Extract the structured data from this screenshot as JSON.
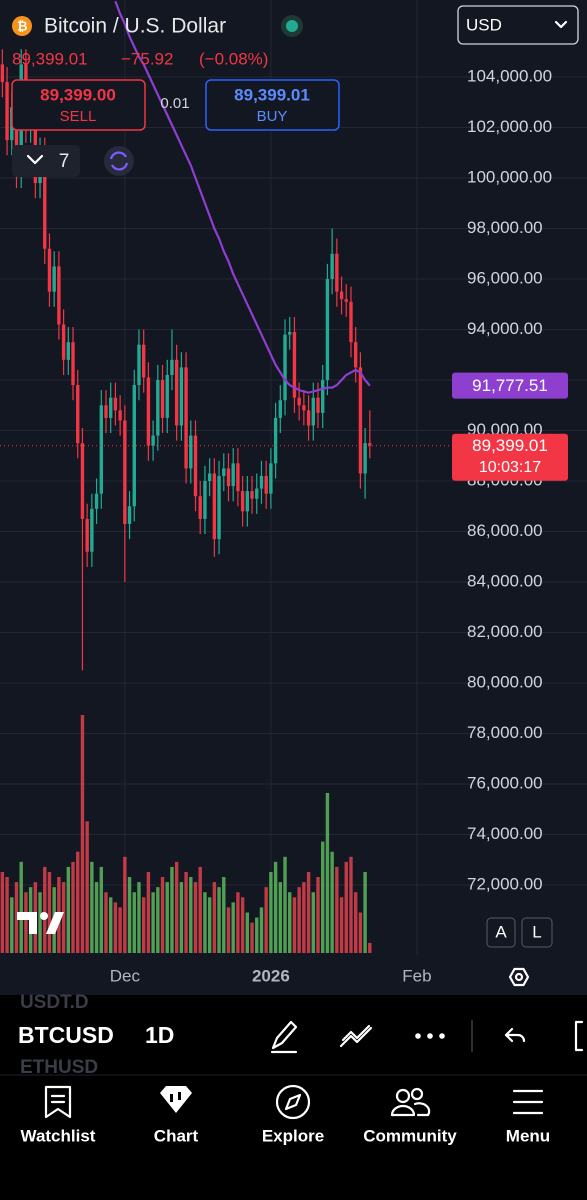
{
  "header": {
    "symbol_title": "Bitcoin / U.S. Dollar",
    "last": "89,399.01",
    "change": "−75.92",
    "change_pct": "(−0.08%)",
    "currency": "USD",
    "sell_price": "89,399.00",
    "sell": "SELL",
    "spread": "0.01",
    "buy_price": "89,399.01",
    "buy": "BUY",
    "indicator_count": "7"
  },
  "chart_data": {
    "type": "candlestick",
    "open": [
      104500,
      103800,
      101500,
      102800,
      100200,
      104500,
      102000,
      103200,
      99800,
      101000,
      97200,
      95500,
      96500,
      94200,
      92800,
      93500,
      91800,
      89500,
      86500,
      85200,
      86900,
      87500,
      91000,
      90500,
      91300,
      90800,
      90400,
      86300,
      87000,
      91800,
      93400,
      92100,
      89400,
      89800,
      92000,
      90500,
      92200,
      92800,
      90200,
      92500,
      88500,
      89800,
      87400,
      86500,
      88000,
      88300,
      85700,
      88200,
      88500,
      87800,
      88700,
      87600,
      86800,
      87600,
      87300,
      87700,
      88200,
      87500,
      88700,
      90500,
      91200,
      93800,
      93900,
      91300,
      91000,
      90800,
      90200,
      91300,
      90700,
      92000,
      96000,
      97000,
      95500,
      95200,
      95100,
      93500,
      92500,
      88300,
      89500
    ],
    "high": [
      105100,
      104400,
      103400,
      103400,
      105100,
      105100,
      103800,
      103800,
      101600,
      101600,
      97800,
      97100,
      97100,
      94800,
      94100,
      94100,
      92400,
      90100,
      87100,
      87500,
      88100,
      91600,
      91600,
      91900,
      91900,
      91400,
      91000,
      87600,
      92400,
      94000,
      94000,
      92700,
      90400,
      92600,
      92600,
      92800,
      94000,
      93400,
      93100,
      93100,
      90400,
      90400,
      88000,
      88600,
      88900,
      88900,
      88800,
      89100,
      89100,
      89300,
      89300,
      88200,
      88200,
      88200,
      88300,
      88800,
      88800,
      89300,
      91100,
      91800,
      94400,
      94500,
      94500,
      91900,
      91600,
      91400,
      91900,
      91900,
      92600,
      96600,
      98000,
      97600,
      96100,
      95800,
      95700,
      94100,
      93100,
      90100,
      90800
    ],
    "low": [
      103200,
      100900,
      100900,
      99600,
      99600,
      101400,
      101400,
      99200,
      99200,
      96600,
      94900,
      94900,
      93600,
      92200,
      92200,
      91200,
      88900,
      80500,
      84600,
      84600,
      86300,
      86900,
      89900,
      89900,
      90200,
      89800,
      84000,
      85700,
      86400,
      91200,
      91500,
      88800,
      88800,
      89200,
      89900,
      89900,
      91600,
      89600,
      89600,
      87900,
      87900,
      86800,
      85900,
      85900,
      87400,
      85000,
      85100,
      87600,
      87200,
      87200,
      87000,
      86200,
      86200,
      86700,
      86700,
      87100,
      86900,
      86900,
      88100,
      89900,
      90600,
      93200,
      90700,
      90400,
      90200,
      89600,
      89600,
      90100,
      90100,
      91400,
      95400,
      94900,
      94600,
      94500,
      92900,
      91900,
      87700,
      87300,
      88900
    ],
    "close": [
      103800,
      101500,
      102800,
      100200,
      104500,
      102000,
      103200,
      99800,
      101000,
      97200,
      95500,
      96500,
      94200,
      92800,
      93500,
      91800,
      89500,
      86500,
      85200,
      86900,
      87500,
      91000,
      90500,
      91300,
      90800,
      90400,
      86300,
      87000,
      91800,
      93400,
      92100,
      89400,
      89800,
      92000,
      90500,
      92200,
      92800,
      90200,
      92500,
      88500,
      89800,
      87400,
      86500,
      88000,
      88300,
      85700,
      88200,
      88500,
      87800,
      88700,
      87600,
      86800,
      87600,
      87300,
      87700,
      88200,
      87500,
      88700,
      90500,
      91200,
      93800,
      93900,
      91300,
      91000,
      90800,
      90200,
      91300,
      90700,
      92000,
      96000,
      97000,
      95500,
      95200,
      95100,
      93500,
      92500,
      88300,
      89500,
      89399.01
    ],
    "volume": [
      80,
      75,
      55,
      70,
      90,
      60,
      65,
      70,
      60,
      85,
      80,
      65,
      75,
      70,
      85,
      90,
      100,
      235,
      130,
      90,
      70,
      85,
      60,
      55,
      50,
      45,
      95,
      75,
      60,
      70,
      55,
      80,
      60,
      65,
      75,
      70,
      85,
      90,
      70,
      80,
      75,
      70,
      85,
      60,
      55,
      70,
      65,
      75,
      45,
      50,
      60,
      55,
      40,
      30,
      35,
      45,
      65,
      80,
      90,
      70,
      95,
      60,
      55,
      65,
      70,
      80,
      60,
      75,
      110,
      158,
      100,
      85,
      55,
      90,
      95,
      60,
      40,
      80,
      10
    ],
    "up_color": "#22ab94",
    "down_color": "#f23645",
    "volume_up_color": "#5cb85c",
    "volume_down_color": "#e0424e",
    "ma": {
      "color": "#8e3fd0",
      "values": [
        null,
        null,
        null,
        null,
        null,
        null,
        null,
        null,
        null,
        null,
        null,
        null,
        null,
        null,
        null,
        null,
        null,
        null,
        null,
        null,
        null,
        null,
        null,
        null,
        107000,
        106500,
        106100,
        105600,
        105200,
        104800,
        104500,
        104100,
        103700,
        103300,
        102900,
        102500,
        102100,
        101700,
        101300,
        100900,
        100500,
        100000,
        99500,
        99000,
        98500,
        98000,
        97600,
        97100,
        96700,
        96200,
        95800,
        95400,
        95000,
        94600,
        94200,
        93800,
        93400,
        93000,
        92600,
        92300,
        92000,
        91800,
        91700,
        91600,
        91550,
        91500,
        91550,
        91600,
        91650,
        91700,
        91700,
        91800,
        92000,
        92200,
        92300,
        92400,
        92300,
        92000,
        91777.51
      ],
      "last_label": "91,777.51"
    },
    "price_line": {
      "value": 89399.01,
      "label": "89,399.01",
      "countdown": "10:03:17",
      "color": "#f23645"
    },
    "xlim": [
      -0.5,
      124.1
    ],
    "xticks": [
      {
        "value": 26,
        "label": "Dec"
      },
      {
        "value": 57,
        "label": "2026"
      },
      {
        "value": 88,
        "label": "Feb"
      }
    ],
    "ylim": [
      69230,
      107050
    ],
    "yticks": [
      {
        "value": 72000,
        "label": "72,000.00"
      },
      {
        "value": 74000,
        "label": "74,000.00"
      },
      {
        "value": 76000,
        "label": "76,000.00"
      },
      {
        "value": 78000,
        "label": "78,000.00"
      },
      {
        "value": 80000,
        "label": "80,000.00"
      },
      {
        "value": 82000,
        "label": "82,000.00"
      },
      {
        "value": 84000,
        "label": "84,000.00"
      },
      {
        "value": 86000,
        "label": "86,000.00"
      },
      {
        "value": 88000,
        "label": "88,000.00"
      },
      {
        "value": 90000,
        "label": "90,000.00"
      },
      {
        "value": 92000,
        "label": "92,000.00"
      },
      {
        "value": 94000,
        "label": "94,000.00"
      },
      {
        "value": 96000,
        "label": "96,000.00"
      },
      {
        "value": 98000,
        "label": "98,000.00"
      },
      {
        "value": 100000,
        "label": "100,000.00"
      },
      {
        "value": 102000,
        "label": "102,000.00"
      },
      {
        "value": 104000,
        "label": "104,000.00"
      }
    ],
    "grid": true
  },
  "toolbar": {
    "prev_symbol": "USDT.D",
    "symbol": "BTCUSD",
    "interval": "1D",
    "next_symbol": "ETHUSD",
    "auto": "A",
    "log": "L"
  },
  "nav": [
    "Watchlist",
    "Chart",
    "Explore",
    "Community",
    "Menu"
  ]
}
